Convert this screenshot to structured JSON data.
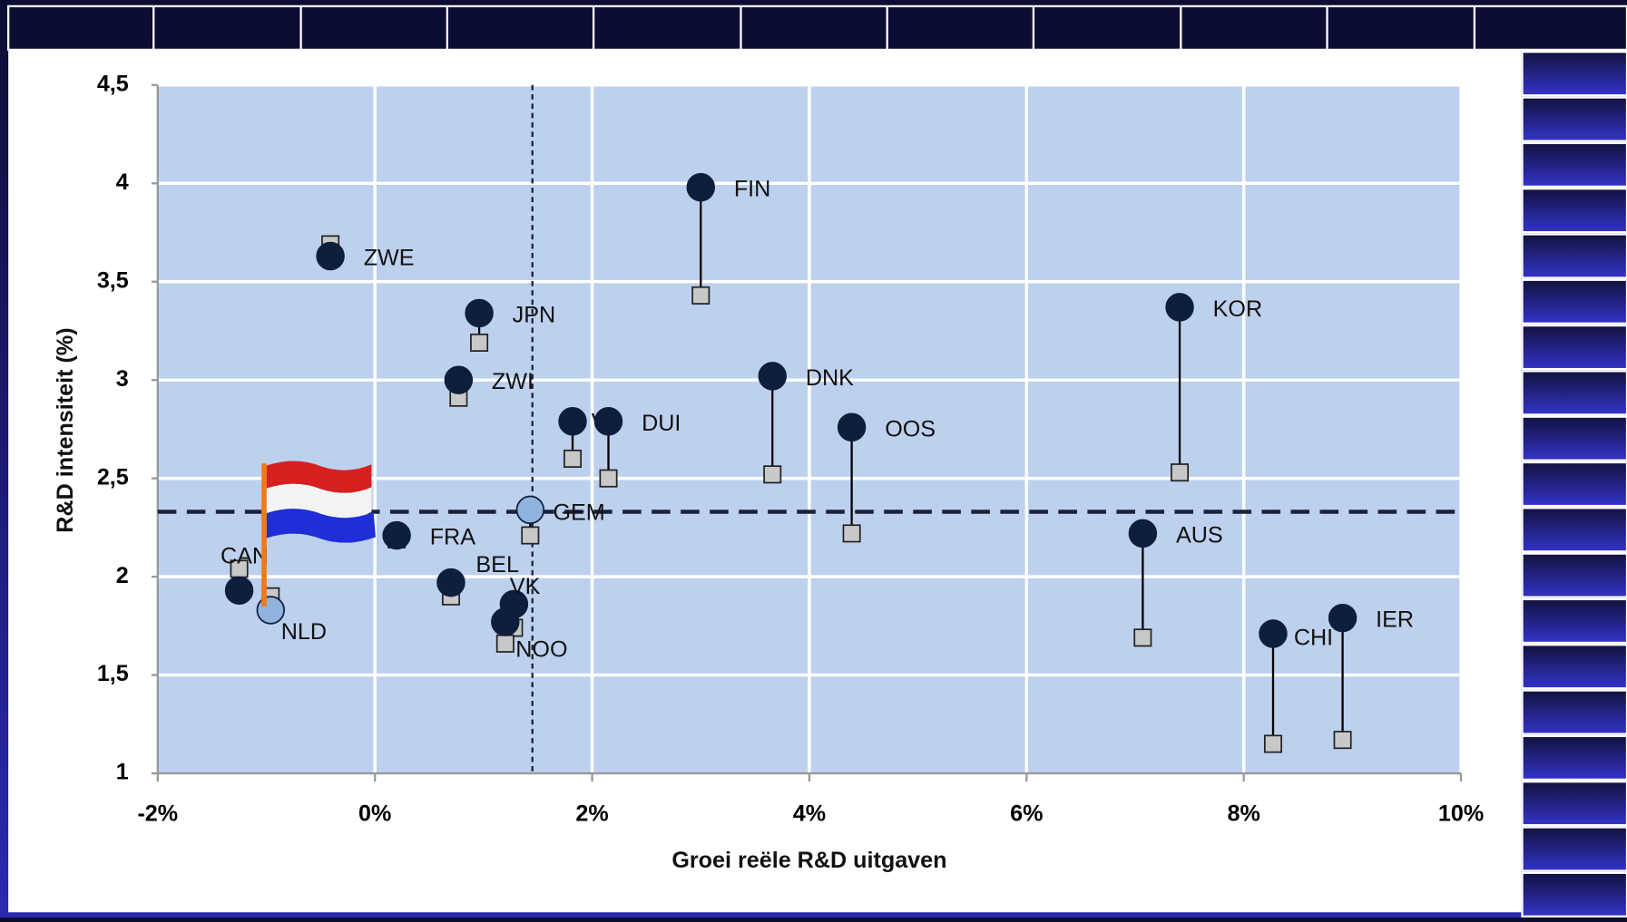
{
  "chart_data": {
    "type": "dumbbell",
    "x_label": "Groei reële R&D uitgaven",
    "y_label": "R&D intensiteit (%)",
    "labels": [
      "ZWE",
      "JPN",
      "ZWI",
      "VS",
      "DUI",
      "FIN",
      "DNK",
      "OOS",
      "KOR",
      "AUS",
      "CHI",
      "IER",
      "GEM",
      "FRA",
      "BEL",
      "VK",
      "NOO",
      "CAN",
      "NLD"
    ],
    "x": [
      -0.41,
      0.96,
      0.77,
      1.82,
      2.15,
      3.0,
      3.66,
      4.39,
      7.41,
      7.07,
      8.27,
      8.91,
      1.43,
      0.2,
      0.7,
      1.28,
      1.2,
      -1.25,
      -0.96
    ],
    "series": [
      {
        "marker": "circle",
        "color": "#0d1f3c",
        "colors": [
          "#0d1f3c",
          "#0d1f3c",
          "#0d1f3c",
          "#0d1f3c",
          "#0d1f3c",
          "#0d1f3c",
          "#0d1f3c",
          "#0d1f3c",
          "#0d1f3c",
          "#0d1f3c",
          "#0d1f3c",
          "#0d1f3c",
          "#8fb2df",
          "#0d1f3c",
          "#0d1f3c",
          "#0d1f3c",
          "#0d1f3c",
          "#0d1f3c",
          "#8fb2df"
        ],
        "values": [
          3.63,
          3.34,
          3.0,
          2.79,
          2.79,
          3.98,
          3.02,
          2.76,
          3.37,
          2.22,
          1.71,
          1.79,
          2.34,
          2.21,
          1.97,
          1.86,
          1.77,
          1.93,
          1.83
        ]
      },
      {
        "marker": "square",
        "color": "#c8c8c8",
        "values": [
          3.69,
          3.19,
          2.91,
          2.6,
          2.5,
          3.43,
          2.52,
          2.22,
          2.53,
          1.69,
          1.15,
          1.17,
          2.21,
          2.19,
          1.9,
          1.74,
          1.66,
          2.04,
          1.9
        ]
      }
    ],
    "reference_lines": {
      "x": 1.45,
      "y": 2.33
    },
    "xlim": [
      -2,
      10
    ],
    "xticks": [
      {
        "value": -2,
        "label": "-2%"
      },
      {
        "value": 0,
        "label": "0%"
      },
      {
        "value": 2,
        "label": "2%"
      },
      {
        "value": 4,
        "label": "4%"
      },
      {
        "value": 6,
        "label": "6%"
      },
      {
        "value": 8,
        "label": "8%"
      },
      {
        "value": 10,
        "label": "10%"
      }
    ],
    "ylim": [
      1,
      4.5
    ],
    "yticks": [
      1,
      {
        "value": 1.5,
        "label": "1,5"
      },
      2,
      {
        "value": 2.5,
        "label": "2,5"
      },
      3,
      {
        "value": 3.5,
        "label": "3,5"
      },
      4,
      {
        "value": 4.5,
        "label": "4,5"
      }
    ],
    "grid": true,
    "plot_background": "#bdd1ee"
  }
}
